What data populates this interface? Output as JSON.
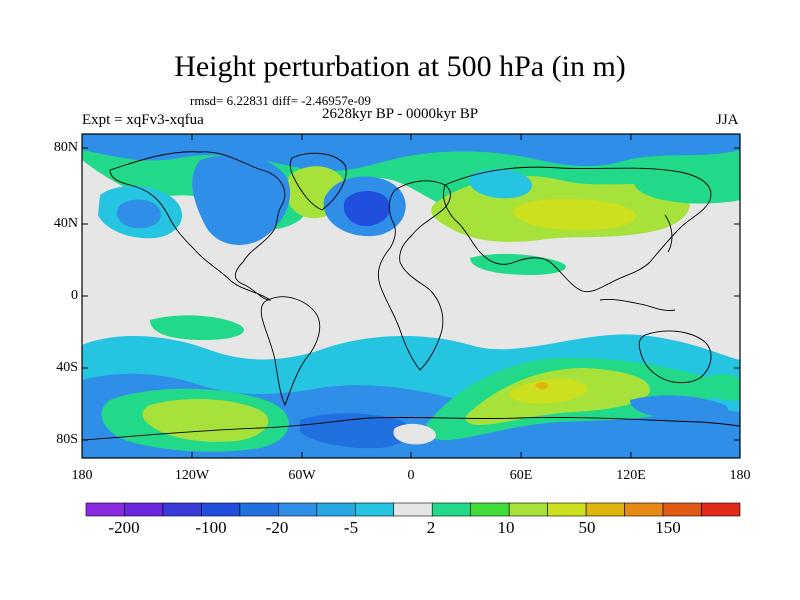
{
  "title": "Height perturbation at 500 hPa (in m)",
  "stats_text": "rmsd= 6.22831  diff= -2.46957e-09",
  "period": "2628kyr BP - 0000kyr BP",
  "experiment": "Expt = xqFv3-xqfua",
  "season": "JJA",
  "lat_labels": [
    "80N",
    "40N",
    "0",
    "40S",
    "80S"
  ],
  "lon_labels": [
    "180",
    "120W",
    "60W",
    "0",
    "60E",
    "120E",
    "180"
  ],
  "colorbar": {
    "colors": [
      "#8a2be2",
      "#6b28e0",
      "#3a3ad8",
      "#1f4fdc",
      "#2070e0",
      "#2f8fe8",
      "#26a8e3",
      "#25c4e0",
      "#e6e6e6",
      "#22d98a",
      "#3fdc3a",
      "#a6e23a",
      "#cde01e",
      "#e0b40f",
      "#e58a14",
      "#e05a14",
      "#e02a1a"
    ],
    "labels": [
      "-200",
      "-100",
      "-20",
      "-5",
      "2",
      "10",
      "50",
      "150"
    ]
  },
  "field_colors": {
    "neutral": "#e6e6e6",
    "light_blue": "#25c4e0",
    "mid_blue": "#2f8fe8",
    "deep_blue": "#2070e0",
    "green": "#22d98a",
    "lime": "#a6e23a",
    "yellow": "#cde01e",
    "orange": "#e0b40f"
  }
}
